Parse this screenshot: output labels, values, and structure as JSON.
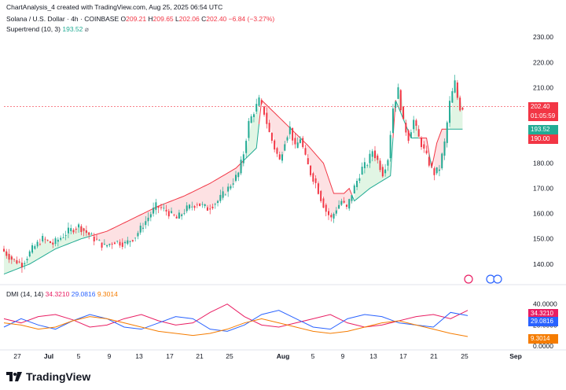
{
  "header": {
    "credit": "ChartAnalysis_4 created with TradingView.com, Aug 25, 2025 06:54 UTC",
    "symbol": "Solana / U.S. Dollar · 4h · COINBASE",
    "o_label": "O",
    "o": "209.21",
    "h_label": "H",
    "h": "209.65",
    "l_label": "L",
    "l": "202.06",
    "c_label": "C",
    "c": "202.40",
    "change": "−6.84 (−3.27%)",
    "supertrend_label": "Supertrend (10, 3)",
    "supertrend_value": "193.52",
    "supertrend_icon": "eye-slash-icon"
  },
  "dmi": {
    "label": "DMI (14, 14)",
    "v1": "34.3210",
    "v2": "29.0816",
    "v3": "9.3014"
  },
  "price_axis": {
    "ticks": [
      "230.00",
      "220.00",
      "210.00",
      "180.00",
      "170.00",
      "160.00",
      "150.00",
      "140.00"
    ],
    "last_price": "202.40",
    "countdown": "01:05:59",
    "supertrend_up": "193.52",
    "supertrend_down": "190.00"
  },
  "dmi_axis": {
    "ticks": [
      "40.0000",
      "20.0000",
      "0.0000"
    ],
    "badge1": "34.3210",
    "badge2": "29.0816",
    "badge3": "9.3014"
  },
  "time_axis": [
    "27",
    "Jul",
    "5",
    "9",
    "13",
    "17",
    "21",
    "25",
    "Aug",
    "5",
    "9",
    "13",
    "17",
    "21",
    "25",
    "Sep"
  ],
  "brand": "TradingView",
  "colors": {
    "up": "#22ab94",
    "down": "#f23645",
    "st_up_fill": "#e1f5e4",
    "st_down_fill": "#fde1e3",
    "dmi_pos": "#e91e63",
    "dmi_neg": "#2962ff",
    "adx": "#f57c00"
  },
  "chart_data": {
    "type": "candlestick",
    "title": "Solana / U.S. Dollar · 4h · COINBASE",
    "ylim": [
      134,
      236
    ],
    "price_path": [
      [
        0,
        146
      ],
      [
        4,
        142
      ],
      [
        8,
        140
      ],
      [
        12,
        146
      ],
      [
        16,
        150
      ],
      [
        20,
        148
      ],
      [
        26,
        153
      ],
      [
        30,
        155
      ],
      [
        36,
        150
      ],
      [
        40,
        147
      ],
      [
        44,
        149
      ],
      [
        48,
        148
      ],
      [
        52,
        151
      ],
      [
        56,
        157
      ],
      [
        60,
        163
      ],
      [
        64,
        161
      ],
      [
        68,
        158
      ],
      [
        72,
        162
      ],
      [
        76,
        164
      ],
      [
        80,
        162
      ],
      [
        84,
        165
      ],
      [
        88,
        170
      ],
      [
        92,
        176
      ],
      [
        94,
        184
      ],
      [
        96,
        196
      ],
      [
        100,
        205
      ],
      [
        102,
        200
      ],
      [
        104,
        192
      ],
      [
        106,
        186
      ],
      [
        108,
        181
      ],
      [
        110,
        189
      ],
      [
        112,
        194
      ],
      [
        114,
        186
      ],
      [
        116,
        190
      ],
      [
        118,
        182
      ],
      [
        120,
        176
      ],
      [
        122,
        172
      ],
      [
        124,
        166
      ],
      [
        126,
        161
      ],
      [
        128,
        158
      ],
      [
        130,
        162
      ],
      [
        132,
        165
      ],
      [
        134,
        162
      ],
      [
        136,
        168
      ],
      [
        138,
        173
      ],
      [
        140,
        178
      ],
      [
        142,
        180
      ],
      [
        144,
        185
      ],
      [
        146,
        181
      ],
      [
        148,
        176
      ],
      [
        150,
        182
      ],
      [
        152,
        202
      ],
      [
        154,
        209
      ],
      [
        156,
        196
      ],
      [
        158,
        190
      ],
      [
        160,
        197
      ],
      [
        162,
        190
      ],
      [
        164,
        185
      ],
      [
        166,
        180
      ],
      [
        168,
        176
      ],
      [
        170,
        178
      ],
      [
        172,
        188
      ],
      [
        174,
        204
      ],
      [
        176,
        212
      ],
      [
        177,
        206
      ],
      [
        178,
        202
      ]
    ],
    "supertrend": [
      [
        0,
        136
      ],
      [
        10,
        140
      ],
      [
        20,
        146
      ],
      [
        30,
        150
      ],
      [
        40,
        153
      ],
      [
        50,
        158
      ],
      [
        60,
        163
      ],
      [
        70,
        167
      ],
      [
        80,
        172
      ],
      [
        90,
        178
      ],
      [
        98,
        186
      ],
      [
        100,
        205
      ],
      [
        112,
        193
      ],
      [
        118,
        187
      ],
      [
        124,
        180
      ],
      [
        128,
        168
      ],
      [
        132,
        168
      ],
      [
        134,
        170
      ],
      [
        136,
        165
      ],
      [
        142,
        170
      ],
      [
        150,
        175
      ],
      [
        152,
        205
      ],
      [
        158,
        190
      ],
      [
        164,
        190
      ],
      [
        166,
        178
      ],
      [
        168,
        188
      ],
      [
        170,
        193.5
      ],
      [
        178,
        193.5
      ]
    ],
    "dmi_plus": [
      26,
      22,
      28,
      30,
      25,
      18,
      20,
      26,
      30,
      24,
      20,
      22,
      32,
      40,
      28,
      20,
      18,
      22,
      26,
      30,
      22,
      18,
      20,
      24,
      28,
      30,
      26,
      34
    ],
    "dmi_minus": [
      18,
      26,
      20,
      16,
      24,
      30,
      26,
      18,
      16,
      22,
      28,
      26,
      16,
      14,
      20,
      30,
      34,
      26,
      18,
      16,
      26,
      30,
      28,
      22,
      20,
      18,
      32,
      29
    ],
    "adx": [
      22,
      20,
      16,
      18,
      24,
      28,
      26,
      22,
      18,
      14,
      12,
      10,
      12,
      16,
      22,
      26,
      22,
      18,
      14,
      12,
      14,
      18,
      22,
      24,
      20,
      16,
      12,
      9
    ]
  }
}
